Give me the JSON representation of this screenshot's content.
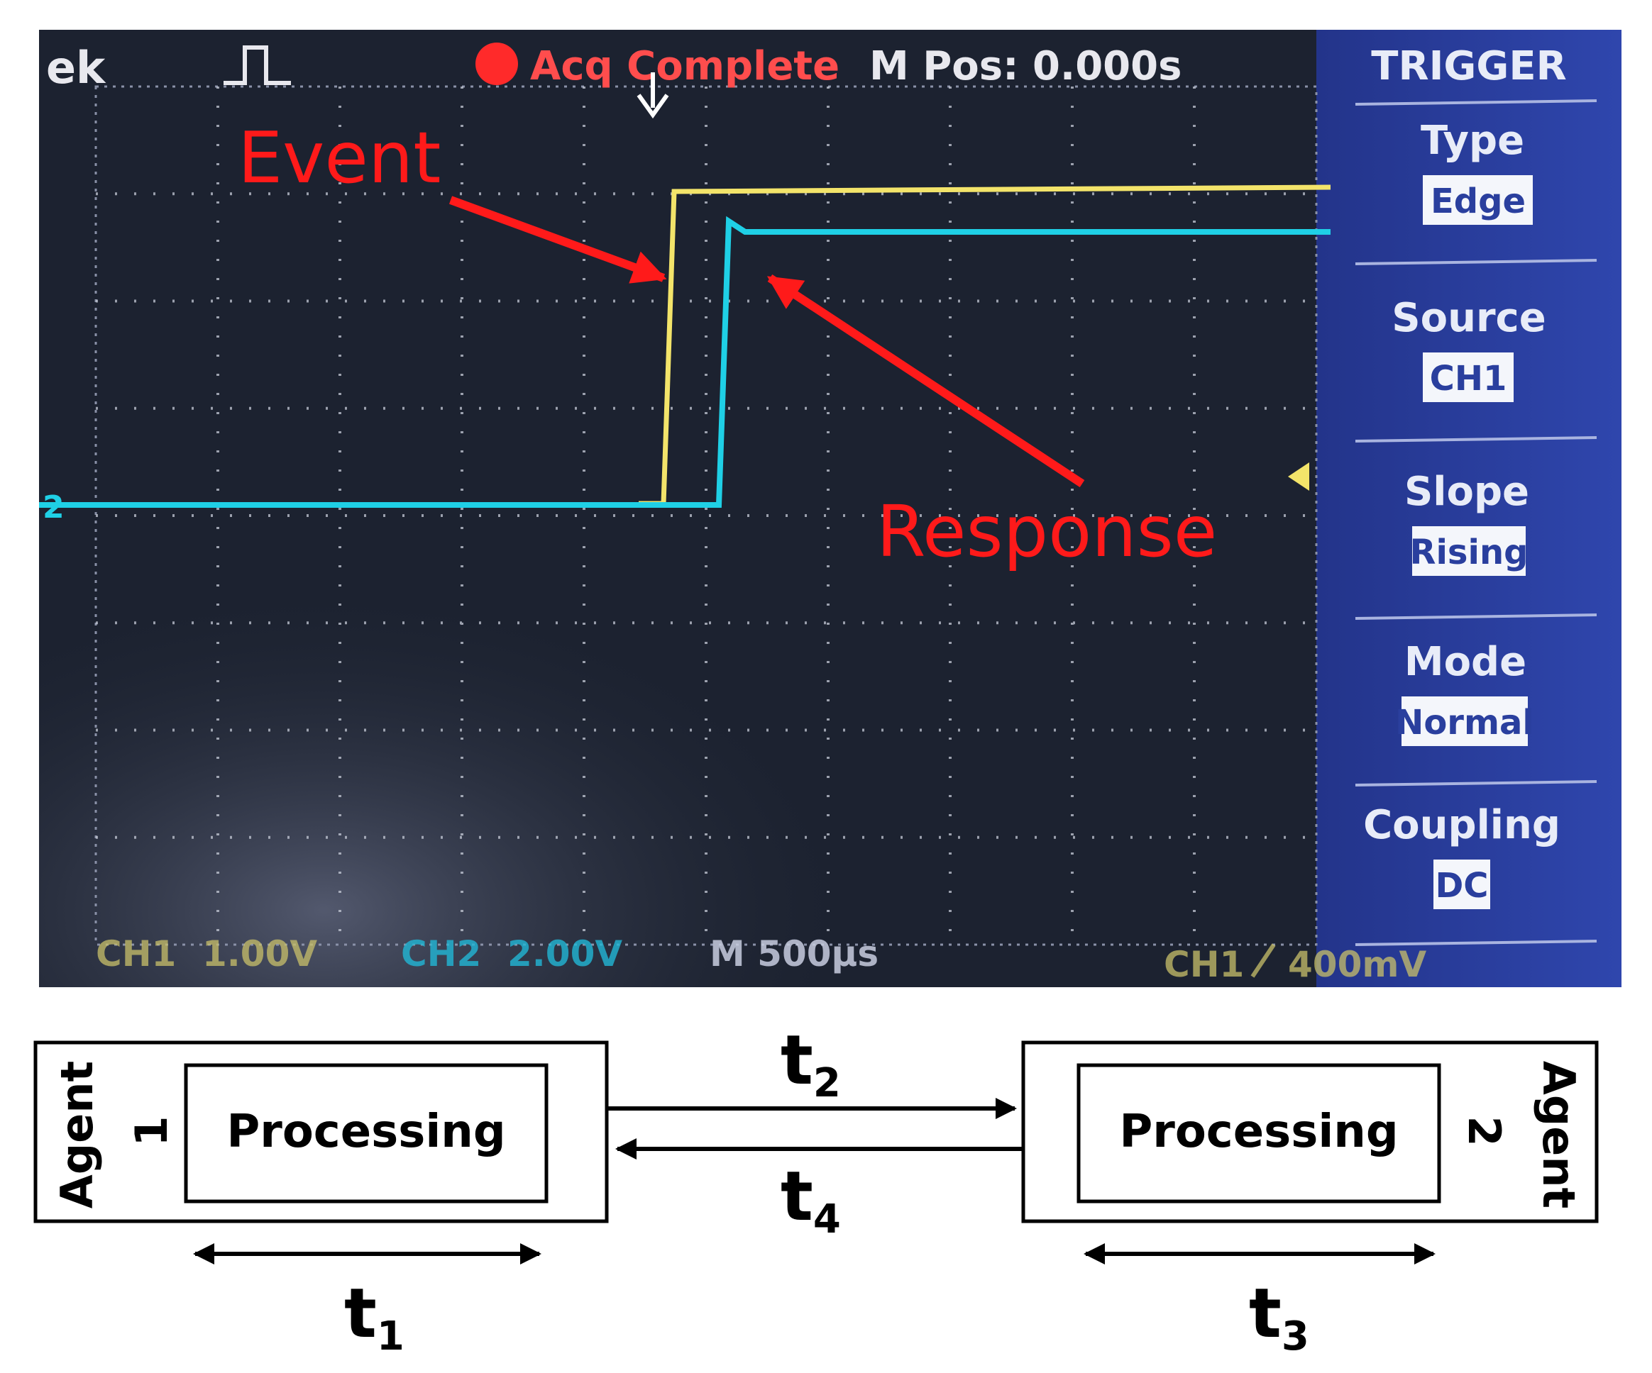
{
  "oscilloscope": {
    "brand_fragment": "ek",
    "status": "Acq Complete",
    "mpos": "M Pos: 0.000s",
    "trigger_menu": {
      "title": "TRIGGER",
      "items": [
        {
          "label": "Type",
          "value": "Edge"
        },
        {
          "label": "Source",
          "value": "CH1"
        },
        {
          "label": "Slope",
          "value": "Rising"
        },
        {
          "label": "Mode",
          "value": "Normal"
        },
        {
          "label": "Coupling",
          "value": "DC"
        }
      ]
    },
    "ch2_marker": "2",
    "bottom_bar": {
      "ch1_name": "CH1",
      "ch1_scale": "1.00V",
      "ch2_name": "CH2",
      "ch2_scale": "2.00V",
      "timebase": "M 500µs",
      "trig_source": "CH1",
      "trig_level": "400mV"
    },
    "annotations": {
      "event": "Event",
      "response": "Response"
    },
    "colors": {
      "ch1": "#f3e46a",
      "ch2": "#1fd0e6",
      "annotation": "#ff1a1a",
      "screen": "#1c2230",
      "panel": "#2a3f9e"
    }
  },
  "diagram": {
    "agent1": {
      "title": "Agent",
      "number": "1",
      "box": "Processing"
    },
    "agent2": {
      "title": "Agent",
      "number": "2",
      "box": "Processing"
    },
    "times": {
      "t1": {
        "main": "t",
        "sub": "1"
      },
      "t2": {
        "main": "t",
        "sub": "2"
      },
      "t3": {
        "main": "t",
        "sub": "3"
      },
      "t4": {
        "main": "t",
        "sub": "4"
      }
    }
  }
}
